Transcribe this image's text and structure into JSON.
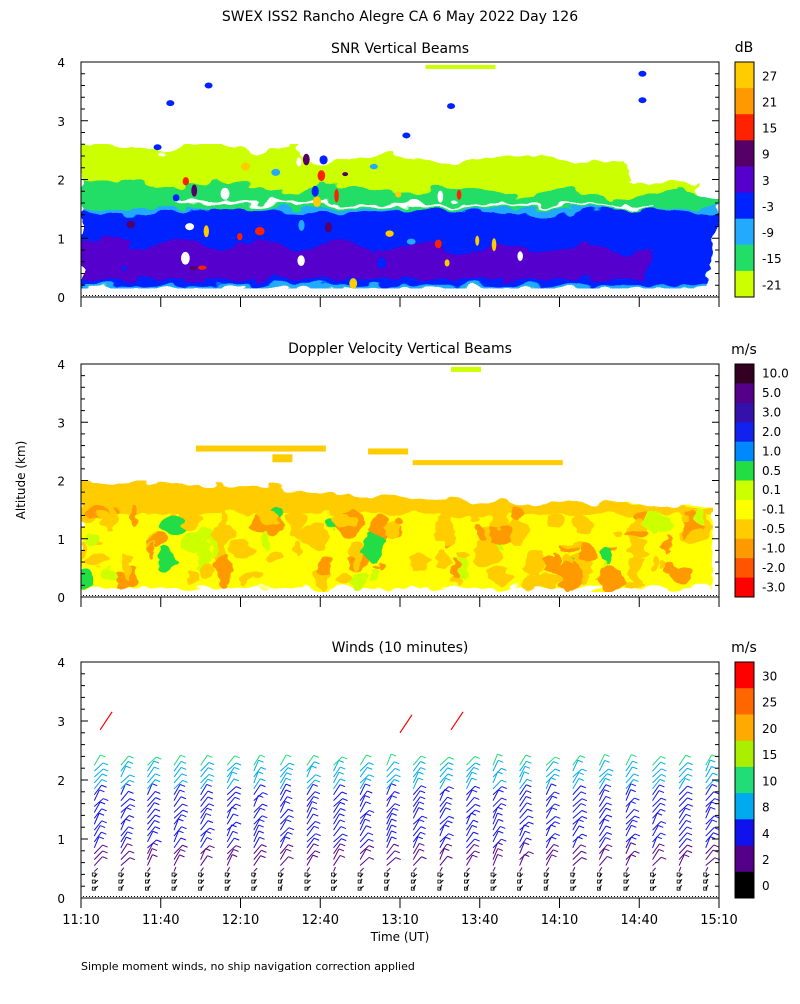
{
  "title": "SWEX ISS2 Rancho Alegre CA   6 May 2022 Day 126",
  "footnote": "Simple moment winds, no ship navigation correction applied",
  "shared_y_label": "Altitude (km)",
  "shared_x_label": "Time (UT)",
  "x_tick_labels": [
    "11:10",
    "11:40",
    "12:10",
    "12:40",
    "13:10",
    "13:40",
    "14:10",
    "14:40",
    "15:10"
  ],
  "y_tick_labels": [
    "0",
    "1",
    "2",
    "3",
    "4"
  ],
  "chart_data": [
    {
      "type": "heatmap",
      "title": "SNR Vertical Beams",
      "ylabel": "Altitude (km)",
      "ylim": [
        0,
        4
      ],
      "x_range": [
        "11:10",
        "15:10"
      ],
      "colorbar": {
        "unit": "dB",
        "labels": [
          "27",
          "21",
          "15",
          "9",
          "3",
          "-3",
          "-9",
          "-15",
          "-21"
        ],
        "colors": [
          "#ffcc00",
          "#ff9900",
          "#ff2200",
          "#550066",
          "#5500cc",
          "#0022ff",
          "#22aaff",
          "#22dd66",
          "#ccff00"
        ]
      },
      "layers": [
        {
          "label": "-21",
          "color": "#ccff00",
          "alt_from": 0.15,
          "alt_to": 2.6
        },
        {
          "label": "-15",
          "color": "#22dd66",
          "alt_from": 0.15,
          "alt_to": 2.0
        },
        {
          "label": "-9",
          "color": "#22aaff",
          "alt_from": 0.15,
          "alt_to": 1.5
        },
        {
          "label": "-3",
          "color": "#0022ff",
          "alt_from": 0.2,
          "alt_to": 1.5
        },
        {
          "label": "3",
          "color": "#5500cc",
          "alt_from": 0.3,
          "alt_to": 1.0
        }
      ]
    },
    {
      "type": "heatmap",
      "title": "Doppler Velocity Vertical Beams",
      "ylabel": "Altitude (km)",
      "ylim": [
        0,
        4
      ],
      "x_range": [
        "11:10",
        "15:10"
      ],
      "colorbar": {
        "unit": "m/s",
        "labels": [
          "10.0",
          "5.0",
          "3.0",
          "2.0",
          "1.0",
          "0.5",
          "0.1",
          "-0.1",
          "-0.5",
          "-1.0",
          "-2.0",
          "-3.0"
        ],
        "colors": [
          "#330022",
          "#550088",
          "#3311aa",
          "#1122ee",
          "#0088ff",
          "#22dd44",
          "#ccff00",
          "#ffff00",
          "#ffcc00",
          "#ff9900",
          "#ff5500",
          "#ff0000"
        ]
      }
    },
    {
      "type": "scatter",
      "title": "Winds (10 minutes)",
      "ylabel": "Altitude (km)",
      "xlabel": "Time (UT)",
      "ylim": [
        0,
        4
      ],
      "x_range": [
        "11:10",
        "15:10"
      ],
      "colorbar": {
        "unit": "m/s",
        "labels": [
          "30",
          "25",
          "20",
          "15",
          "10",
          "8",
          "4",
          "2",
          "0"
        ],
        "colors": [
          "#ff0000",
          "#ff6600",
          "#ffaa00",
          "#aaee00",
          "#22dd77",
          "#00aaee",
          "#1111ee",
          "#550088",
          "#000000"
        ]
      }
    }
  ]
}
